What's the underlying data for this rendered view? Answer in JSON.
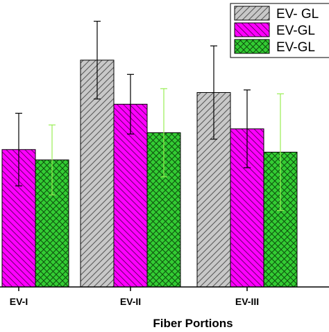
{
  "chart_data": {
    "type": "bar",
    "title": "",
    "xlabel": "Fiber Portions",
    "ylabel": "",
    "categories": [
      "EV-I",
      "EV-II",
      "EV-III",
      ""
    ],
    "visible_categories": [
      "EV-I",
      "EV-II",
      "EV-III"
    ],
    "series": [
      {
        "name": "EV- GL",
        "color": "#c8c8c8",
        "pattern": "diagonal-hatch-forward",
        "values": [
          null,
          0.875,
          0.75,
          null
        ],
        "errors": [
          null,
          0.15,
          0.18,
          null
        ]
      },
      {
        "name": "EV-GL",
        "color": "#ff00ff",
        "pattern": "diagonal-hatch-back",
        "values": [
          0.53,
          0.705,
          0.61,
          null
        ],
        "errors": [
          0.14,
          0.115,
          0.15,
          null
        ]
      },
      {
        "name": "EV-GL",
        "color": "#33cc33",
        "pattern": "cross-hatch",
        "values": [
          0.49,
          0.595,
          0.52,
          null
        ],
        "errors": [
          0.135,
          0.17,
          0.225,
          null
        ]
      }
    ],
    "ylim": [
      0,
      1.0
    ],
    "grid": false,
    "legend": "top-right"
  }
}
